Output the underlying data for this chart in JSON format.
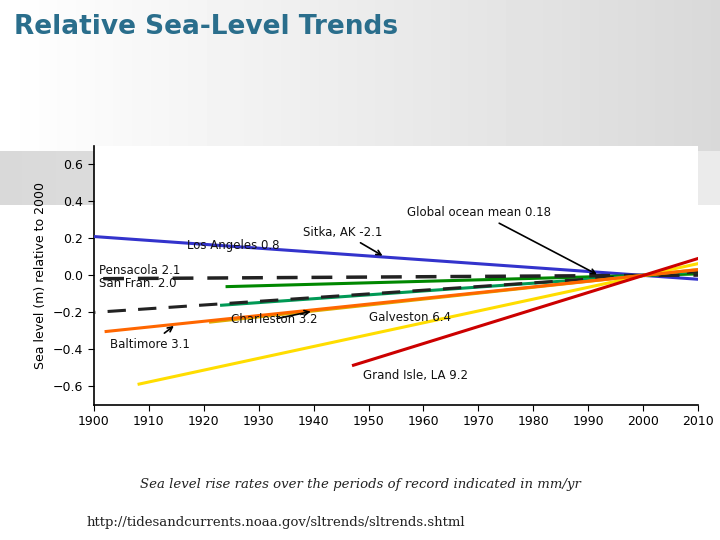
{
  "title": "Relative Sea-Level Trends",
  "ylabel": "Sea level (m) relative to 2000",
  "xlim": [
    1900,
    2010
  ],
  "ylim": [
    -0.7,
    0.7
  ],
  "yticks": [
    -0.6,
    -0.4,
    -0.2,
    0,
    0.2,
    0.4,
    0.6
  ],
  "xticks": [
    1900,
    1910,
    1920,
    1930,
    1940,
    1950,
    1960,
    1970,
    1980,
    1990,
    2000,
    2010
  ],
  "title_color": "#2a6e8c",
  "series": [
    {
      "label": "Sitka, AK -2.1",
      "color": "#3333cc",
      "rate_mm_yr": -2.1,
      "start_year": 1897,
      "linestyle": "solid",
      "linewidth": 2.2
    },
    {
      "label": "Los Angeles 0.8",
      "color": "#008800",
      "rate_mm_yr": 0.8,
      "start_year": 1924,
      "linestyle": "solid",
      "linewidth": 2.2
    },
    {
      "label": "Pensacola 2.1",
      "color": "#009955",
      "rate_mm_yr": 2.1,
      "start_year": 1923,
      "linestyle": "solid",
      "linewidth": 2.2
    },
    {
      "label": "San Fran. 2.0",
      "color": "#222222",
      "rate_mm_yr": 2.0,
      "start_year": 1897,
      "linestyle": "dashed",
      "linewidth": 2.2,
      "dashes": [
        6,
        4
      ]
    },
    {
      "label": "Global ocean mean 0.18",
      "color": "#222222",
      "rate_mm_yr": 0.18,
      "start_year": 1880,
      "linestyle": "dashed",
      "linewidth": 2.5,
      "dashes": [
        6,
        4
      ]
    },
    {
      "label": "Charleston 3.2",
      "color": "#ddaa00",
      "rate_mm_yr": 3.2,
      "start_year": 1921,
      "linestyle": "solid",
      "linewidth": 2.2
    },
    {
      "label": "Galveston 6.4",
      "color": "#ffdd00",
      "rate_mm_yr": 6.4,
      "start_year": 1908,
      "linestyle": "solid",
      "linewidth": 2.2
    },
    {
      "label": "Baltimore 3.1",
      "color": "#ff6600",
      "rate_mm_yr": 3.1,
      "start_year": 1902,
      "linestyle": "solid",
      "linewidth": 2.2
    },
    {
      "label": "Grand Isle, LA 9.2",
      "color": "#cc0000",
      "rate_mm_yr": 9.2,
      "start_year": 1947,
      "linestyle": "solid",
      "linewidth": 2.2
    }
  ],
  "footer_italic": "Sea level rise rates over the periods of record indicated in mm/yr",
  "footer_url": "http://tidesandcurrents.noaa.gov/sltrends/sltrends.shtml",
  "ref_year": 2000
}
